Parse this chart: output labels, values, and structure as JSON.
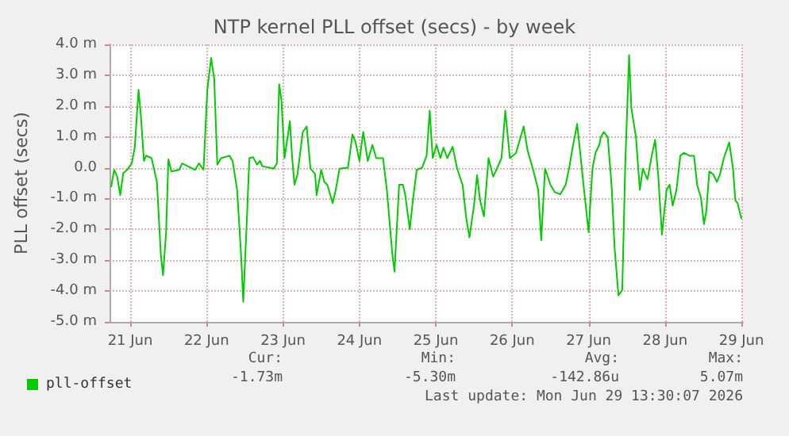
{
  "chart_data": {
    "type": "line",
    "title": "NTP kernel PLL offset (secs) - by week",
    "ylabel": "PLL offset (secs)",
    "xlim": [
      "2026-06-21T05:31",
      "2026-06-29T12:29"
    ],
    "xticks": [
      {
        "value": "2026-06-21T12:00",
        "label": "21 Jun"
      },
      {
        "value": "2026-06-22T12:00",
        "label": "22 Jun"
      },
      {
        "value": "2026-06-23T12:00",
        "label": "23 Jun"
      },
      {
        "value": "2026-06-24T12:00",
        "label": "24 Jun"
      },
      {
        "value": "2026-06-25T12:00",
        "label": "25 Jun"
      },
      {
        "value": "2026-06-26T12:00",
        "label": "26 Jun"
      },
      {
        "value": "2026-06-27T12:00",
        "label": "27 Jun"
      },
      {
        "value": "2026-06-28T12:00",
        "label": "28 Jun"
      },
      {
        "value": "2026-06-29T12:00",
        "label": "29 Jun"
      }
    ],
    "ylim": [
      -5,
      4
    ],
    "yticks": [
      {
        "value": -5,
        "label": "-5.0 m"
      },
      {
        "value": -4,
        "label": "-4.0 m"
      },
      {
        "value": -3,
        "label": "-3.0 m"
      },
      {
        "value": -2,
        "label": "-2.0 m"
      },
      {
        "value": -1,
        "label": "-1.0 m"
      },
      {
        "value": 0,
        "label": "0.0"
      },
      {
        "value": 1,
        "label": "1.0 m"
      },
      {
        "value": 2,
        "label": "2.0 m"
      },
      {
        "value": 3,
        "label": "3.0 m"
      },
      {
        "value": 4,
        "label": "4.0 m"
      }
    ],
    "grid": true,
    "legend": "bottom left",
    "marker": "none",
    "line_style": "solid",
    "x": [
      "2026-06-21T06:00",
      "2026-06-21T06:58",
      "2026-06-21T07:55",
      "2026-06-21T08:53",
      "2026-06-21T09:50",
      "2026-06-21T11:02",
      "2026-06-21T12:29",
      "2026-06-21T13:26",
      "2026-06-21T14:38",
      "2026-06-21T15:22",
      "2026-06-21T16:19",
      "2026-06-21T17:02",
      "2026-06-21T18:43",
      "2026-06-21T20:24",
      "2026-06-21T21:36",
      "2026-06-21T22:19",
      "2026-06-21T23:17",
      "2026-06-22T00:00",
      "2026-06-22T00:58",
      "2026-06-22T03:22",
      "2026-06-22T04:19",
      "2026-06-22T08:24",
      "2026-06-22T09:36",
      "2026-06-22T11:02",
      "2026-06-22T12:14",
      "2026-06-22T13:26",
      "2026-06-22T14:24",
      "2026-06-22T15:22",
      "2026-06-22T16:34",
      "2026-06-22T19:12",
      "2026-06-22T20:10",
      "2026-06-22T21:36",
      "2026-06-22T22:48",
      "2026-06-22T23:31",
      "2026-06-23T00:29",
      "2026-06-23T01:26",
      "2026-06-23T02:38",
      "2026-06-23T03:50",
      "2026-06-23T04:48",
      "2026-06-23T05:31",
      "2026-06-23T09:07",
      "2026-06-23T10:05",
      "2026-06-23T10:48",
      "2026-06-23T11:31",
      "2026-06-23T12:29",
      "2026-06-23T14:10",
      "2026-06-23T14:53",
      "2026-06-23T15:36",
      "2026-06-23T16:34",
      "2026-06-23T18:14",
      "2026-06-23T19:26",
      "2026-06-23T20:38",
      "2026-06-23T22:05",
      "2026-06-23T22:34",
      "2026-06-24T00:00",
      "2026-06-24T00:58",
      "2026-06-24T01:55",
      "2026-06-24T03:36",
      "2026-06-24T04:34",
      "2026-06-24T05:46",
      "2026-06-24T08:24",
      "2026-06-24T09:50",
      "2026-06-24T10:48",
      "2026-06-24T12:00",
      "2026-06-24T13:12",
      "2026-06-24T14:38",
      "2026-06-24T16:05",
      "2026-06-24T17:17",
      "2026-06-24T19:26",
      "2026-06-24T20:38",
      "2026-06-24T22:19",
      "2026-06-24T23:02",
      "2026-06-25T00:29",
      "2026-06-25T01:41",
      "2026-06-25T02:24",
      "2026-06-25T03:50",
      "2026-06-25T04:48",
      "2026-06-25T06:00",
      "2026-06-25T07:41",
      "2026-06-25T09:07",
      "2026-06-25T10:05",
      "2026-06-25T11:02",
      "2026-06-25T12:14",
      "2026-06-25T13:26",
      "2026-06-25T14:24",
      "2026-06-25T15:36",
      "2026-06-25T17:17",
      "2026-06-25T18:43",
      "2026-06-25T20:24",
      "2026-06-25T21:36",
      "2026-06-25T22:34",
      "2026-06-26T00:00",
      "2026-06-26T00:58",
      "2026-06-26T01:55",
      "2026-06-26T03:07",
      "2026-06-26T04:34",
      "2026-06-26T06:00",
      "2026-06-26T07:12",
      "2026-06-26T08:38",
      "2026-06-26T09:50",
      "2026-06-26T11:17",
      "2026-06-26T13:12",
      "2026-06-26T15:36",
      "2026-06-26T16:48",
      "2026-06-26T18:29",
      "2026-06-26T20:10",
      "2026-06-26T21:07",
      "2026-06-26T22:19",
      "2026-06-27T00:00",
      "2026-06-27T01:26",
      "2026-06-27T03:07",
      "2026-06-27T04:48",
      "2026-06-27T06:00",
      "2026-06-27T06:58",
      "2026-06-27T08:24",
      "2026-06-27T09:22",
      "2026-06-27T10:34",
      "2026-06-27T12:00",
      "2026-06-27T13:12",
      "2026-06-27T14:10",
      "2026-06-27T15:22",
      "2026-06-27T15:50",
      "2026-06-27T16:48",
      "2026-06-27T18:00",
      "2026-06-27T19:12",
      "2026-06-27T20:10",
      "2026-06-27T21:22",
      "2026-06-27T22:34",
      "2026-06-27T23:31",
      "2026-06-28T00:43",
      "2026-06-28T01:26",
      "2026-06-28T02:53",
      "2026-06-28T04:05",
      "2026-06-28T05:02",
      "2026-06-28T06:29",
      "2026-06-28T07:41",
      "2026-06-28T08:53",
      "2026-06-28T09:50",
      "2026-06-28T11:02",
      "2026-06-28T12:29",
      "2026-06-28T13:26",
      "2026-06-28T14:24",
      "2026-06-28T15:36",
      "2026-06-28T16:48",
      "2026-06-28T18:00",
      "2026-06-28T19:41",
      "2026-06-28T21:07",
      "2026-06-28T22:05",
      "2026-06-28T23:17",
      "2026-06-29T00:14",
      "2026-06-29T00:58",
      "2026-06-29T01:55",
      "2026-06-29T03:07",
      "2026-06-29T04:19",
      "2026-06-29T05:17",
      "2026-06-29T06:29",
      "2026-06-29T08:10",
      "2026-06-29T09:22",
      "2026-06-29T10:05",
      "2026-06-29T10:48",
      "2026-06-29T12:00"
    ],
    "series": [
      {
        "name": "pll-offset",
        "color": "#00cc00",
        "values": [
          -0.63,
          -0.07,
          -0.29,
          -0.89,
          -0.17,
          -0.07,
          0.14,
          0.65,
          2.53,
          1.68,
          0.22,
          0.39,
          0.31,
          -0.46,
          -2.77,
          -3.49,
          -2.09,
          0.27,
          -0.12,
          -0.07,
          0.14,
          -0.07,
          0.14,
          -0.07,
          2.53,
          3.56,
          2.88,
          0.1,
          0.31,
          0.39,
          0.22,
          -0.72,
          -2.77,
          -4.35,
          -2.09,
          0.31,
          0.34,
          0.1,
          0.22,
          0.05,
          -0.03,
          0.14,
          2.71,
          2.19,
          0.31,
          1.51,
          0.31,
          -0.55,
          -0.21,
          1.16,
          1.34,
          -0.03,
          -0.21,
          -0.89,
          -0.07,
          -0.46,
          -0.55,
          -1.15,
          -0.72,
          -0.03,
          0,
          1.08,
          0.82,
          0.22,
          1.16,
          0.22,
          0.74,
          0.31,
          0.31,
          -0.72,
          -2.77,
          -3.37,
          -0.55,
          -0.55,
          -0.89,
          -2.0,
          -1.06,
          -0.07,
          0,
          0.39,
          1.85,
          0.31,
          0.74,
          0.31,
          0.65,
          0.31,
          0.68,
          -0.03,
          -0.55,
          -1.66,
          -2.26,
          -1.23,
          -0.24,
          -1.06,
          -1.58,
          0.31,
          -0.29,
          -0.03,
          0.31,
          1.85,
          0.31,
          0.48,
          1.34,
          0.57,
          -0.03,
          -0.72,
          -2.35,
          -0.03,
          -0.55,
          -0.8,
          -0.86,
          -0.55,
          0.05,
          0.65,
          1.42,
          0.48,
          -0.72,
          -2.09,
          -0.03,
          0.48,
          0.74,
          0.99,
          1.16,
          0.99,
          -0.55,
          -2.6,
          -4.14,
          -3.97,
          0.14,
          3.65,
          1.93,
          0.99,
          -0.72,
          -0.03,
          -0.38,
          0.31,
          0.91,
          -0.21,
          -2.17,
          -0.72,
          -0.55,
          -1.23,
          -0.72,
          0.39,
          0.48,
          0.39,
          0.39,
          -0.55,
          -0.98,
          -1.83,
          -1.4,
          -0.12,
          -0.21,
          -0.46,
          -0.21,
          0.31,
          0.82,
          -0.03,
          -1.06,
          -1.15,
          -1.66
        ]
      }
    ],
    "annotations": [
      "Cur:",
      "-1.73m",
      "Min:",
      "-5.30m",
      "Avg:",
      "-142.86u",
      "Max:",
      "5.07m",
      "Last update: Mon Jun 29 13:30:07 2026"
    ]
  }
}
